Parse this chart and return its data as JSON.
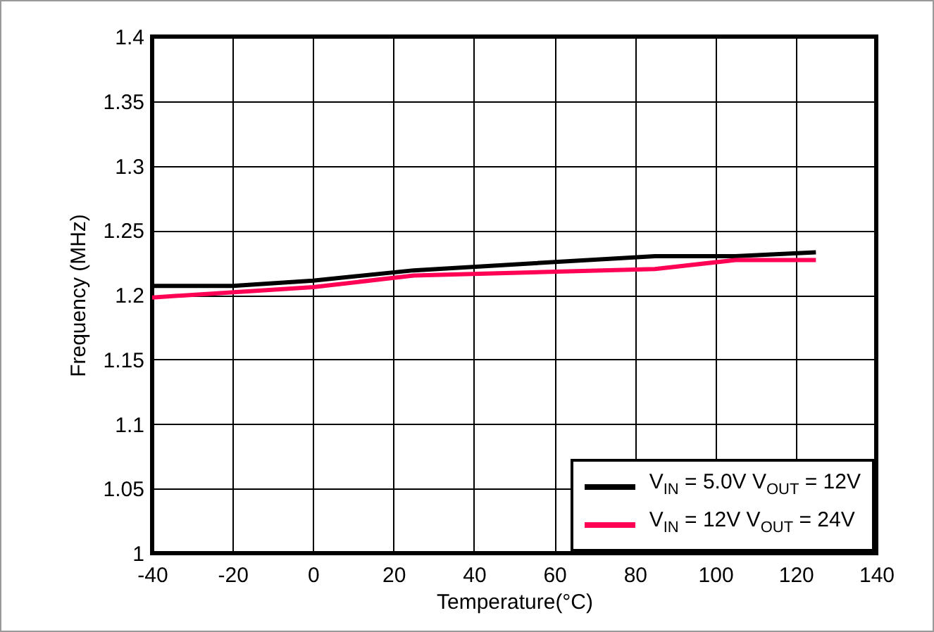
{
  "chart_data": {
    "type": "line",
    "xlabel": "Temperature(°C)",
    "ylabel": "Frequency (MHz)",
    "xlim": [
      -40,
      140
    ],
    "xticks": [
      -40,
      -20,
      0,
      20,
      40,
      60,
      80,
      100,
      120,
      140
    ],
    "ylim": [
      1,
      1.4
    ],
    "yticks": [
      1,
      1.05,
      1.1,
      1.15,
      1.2,
      1.25,
      1.3,
      1.35,
      1.4
    ],
    "grid": true,
    "legend": "bottom right",
    "line_style": "solid",
    "series": [
      {
        "name": "V$_{IN}$ = 5.0V V$_{OUT}$ = 12V",
        "color": "#000000",
        "x": [
          -40,
          -20,
          0,
          25,
          85,
          105,
          125
        ],
        "values": [
          1.207,
          1.207,
          1.211,
          1.219,
          1.23,
          1.23,
          1.233
        ]
      },
      {
        "name": "V$_{IN}$ = 12V V$_{OUT}$ = 24V",
        "color": "#ff0055",
        "x": [
          -40,
          0,
          25,
          85,
          105,
          125
        ],
        "values": [
          1.198,
          1.206,
          1.215,
          1.22,
          1.227,
          1.227
        ]
      }
    ]
  }
}
